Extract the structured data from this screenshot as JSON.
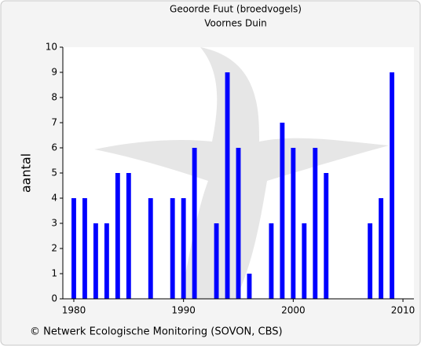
{
  "chart_data": {
    "type": "bar",
    "title": "Geoorde Fuut (broedvogels)",
    "subtitle": "Voornes Duin",
    "y_label": "aantal",
    "footer": "© Netwerk Ecologische Monitoring (SOVON, CBS)",
    "x": [
      1980,
      1981,
      1982,
      1983,
      1984,
      1985,
      1987,
      1989,
      1990,
      1991,
      1993,
      1994,
      1995,
      1996,
      1998,
      1999,
      2000,
      2001,
      2002,
      2003,
      2007,
      2008,
      2009
    ],
    "values": [
      4,
      4,
      3,
      3,
      5,
      5,
      4,
      4,
      4,
      6,
      3,
      9,
      6,
      1,
      3,
      7,
      6,
      3,
      6,
      5,
      3,
      4,
      9
    ],
    "color": "#0000ff",
    "xlim": [
      1979,
      2011
    ],
    "xticks": [
      1980,
      1990,
      2000,
      2010
    ],
    "ylim": [
      0,
      10
    ],
    "yticks": [
      0,
      1,
      2,
      3,
      4,
      5,
      6,
      7,
      8,
      9,
      10
    ]
  }
}
